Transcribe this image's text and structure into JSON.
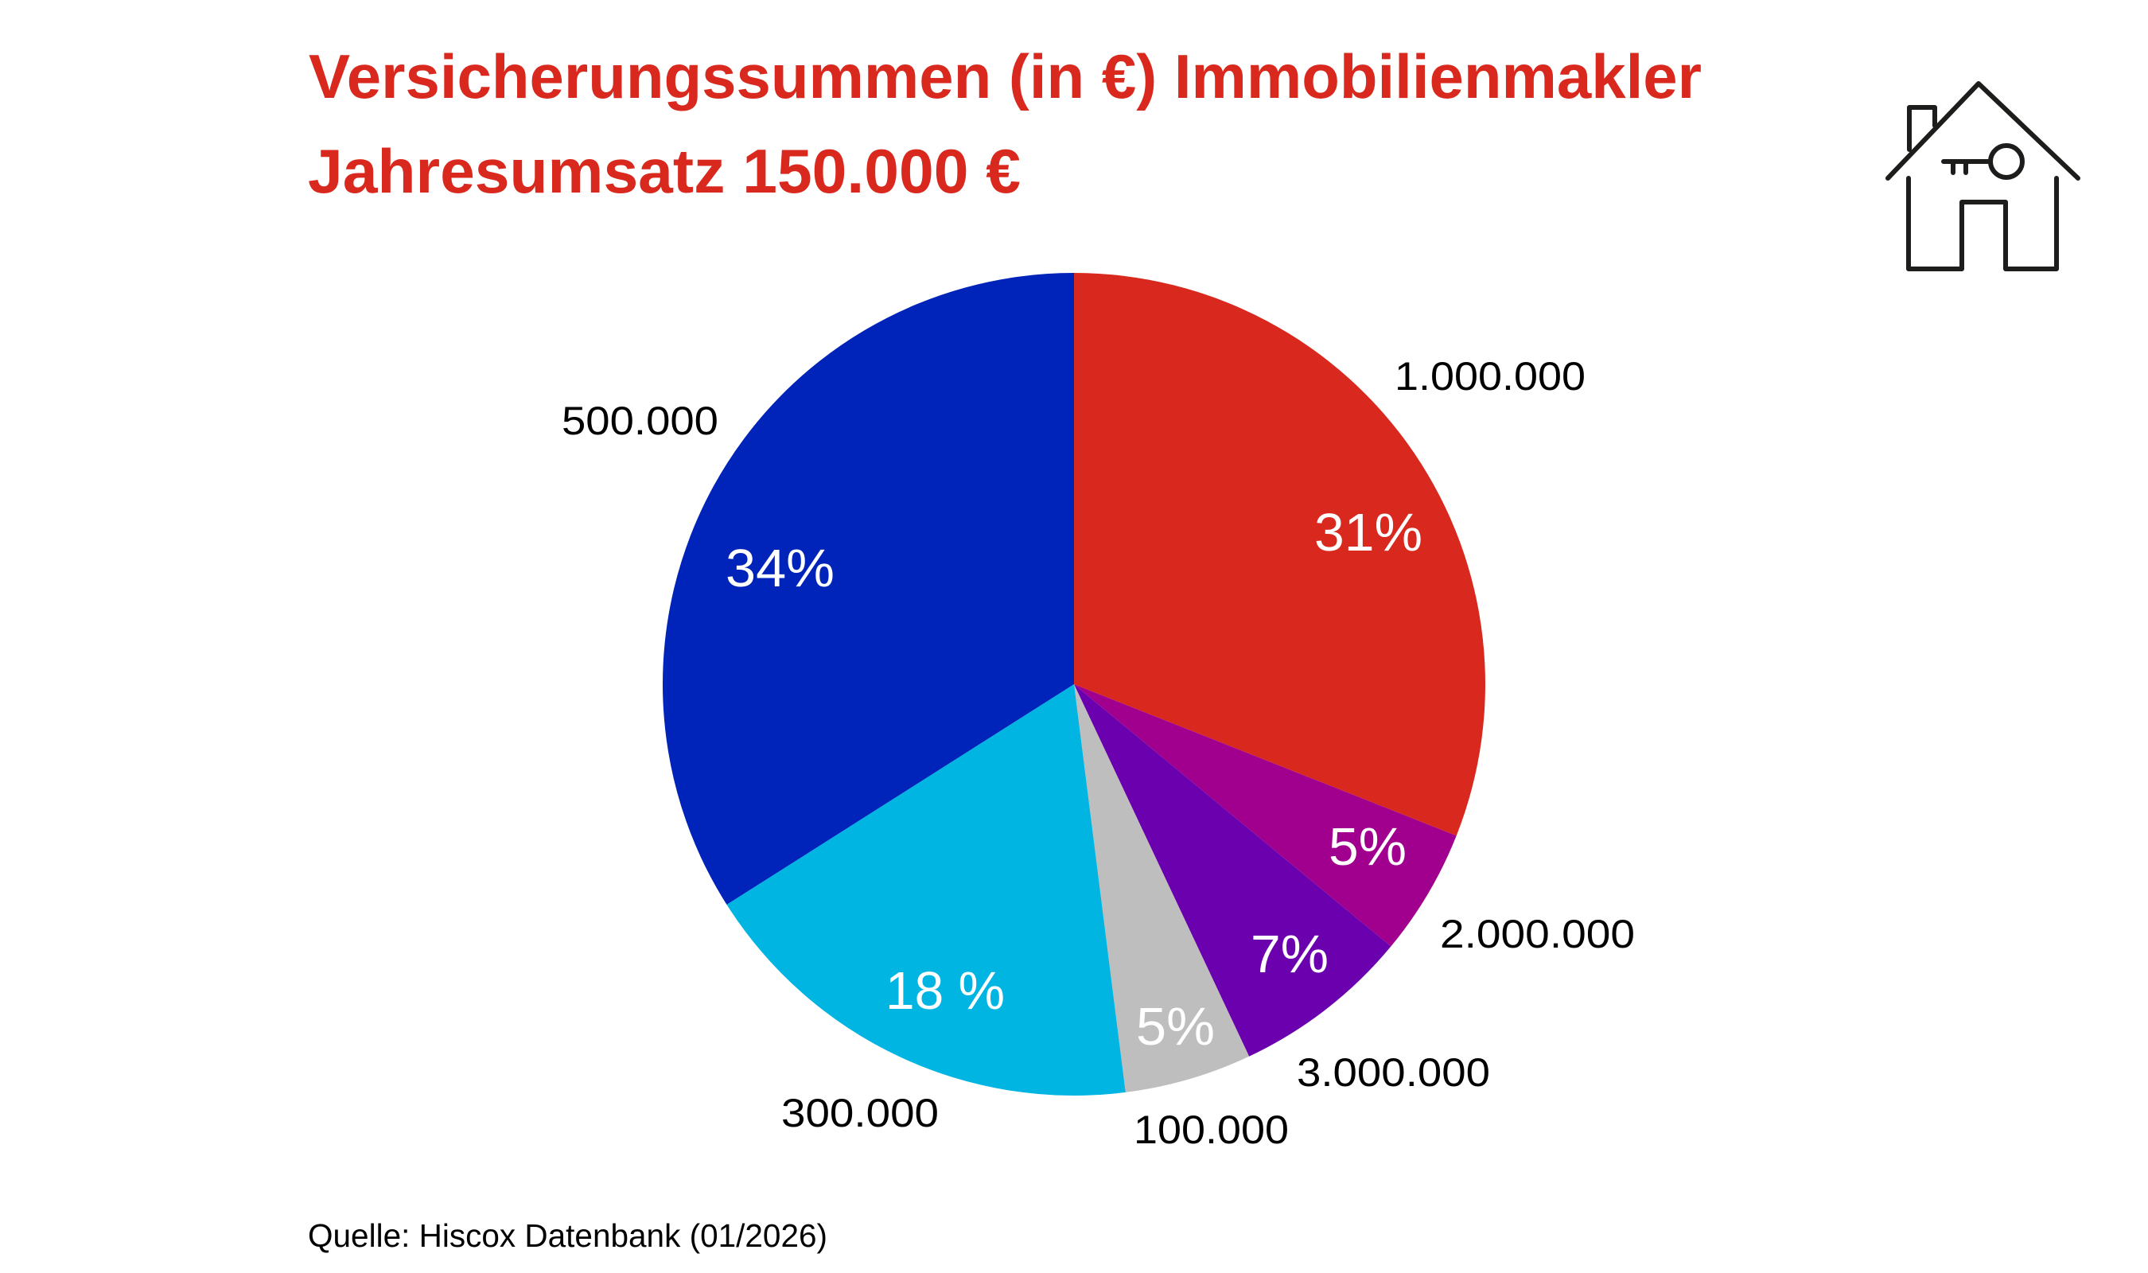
{
  "header": {
    "title_line1": "Versicherungssummen (in €) Immobilienmakler",
    "title_line2": "Jahresumsatz 150.000 €",
    "title_color": "#D9291E"
  },
  "icon": {
    "name": "house-with-key-icon"
  },
  "footer": {
    "source": "Quelle: Hiscox Datenbank (01/2026)"
  },
  "chart_data": {
    "type": "pie",
    "title": "Versicherungssummen (in €) Immobilienmakler – Jahresumsatz 150.000 €",
    "xlabel": "",
    "ylabel": "",
    "start_angle": "12 o'clock, clockwise",
    "legend": "none (direct labels)",
    "categories": [
      "1.000.000",
      "2.000.000",
      "3.000.000",
      "100.000",
      "300.000",
      "500.000"
    ],
    "values": [
      31,
      5,
      7,
      5,
      18,
      34
    ],
    "value_labels": [
      "31%",
      "5%",
      "7%",
      "5%",
      "18 %",
      "34%"
    ],
    "colors": [
      "#D9291E",
      "#A1008E",
      "#6B00AE",
      "#BEBEBE",
      "#00B5E2",
      "#0023B9"
    ],
    "unit": "%",
    "source": "Quelle: Hiscox Datenbank (01/2026)"
  }
}
